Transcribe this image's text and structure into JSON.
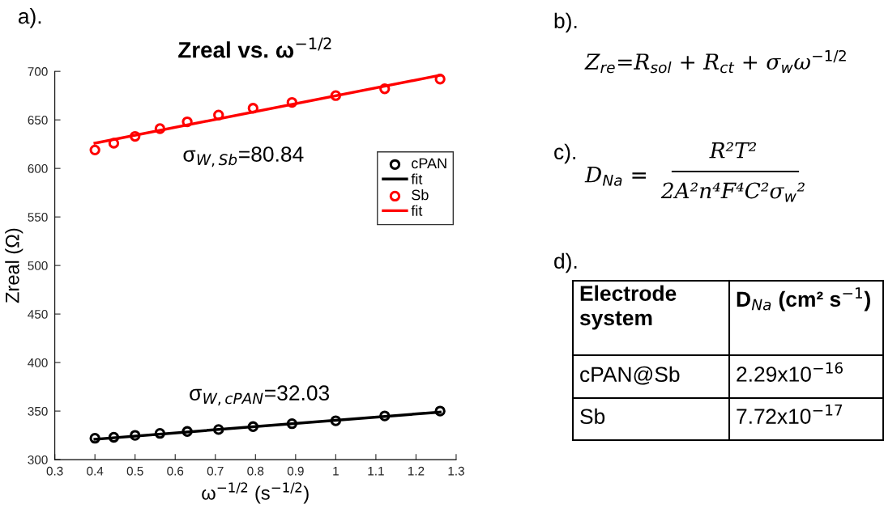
{
  "chart_data": [
    {
      "type": "scatter",
      "title": "Zreal vs. ω$^{−1/2}$",
      "xlabel": "ω$^{−1/2}$ (s$^{−1/2}$)",
      "ylabel": "Zreal (Ω)",
      "xlim": [
        0.3,
        1.3
      ],
      "xticks": [
        0.3,
        0.4,
        0.5,
        0.6,
        0.7,
        0.8,
        0.9,
        1,
        1.1,
        1.2,
        1.3
      ],
      "ylim": [
        300,
        700
      ],
      "yticks": [
        300,
        350,
        400,
        450,
        500,
        550,
        600,
        650,
        700
      ],
      "grid": false,
      "legend": "right",
      "series": [
        {
          "name": "cPAN",
          "type": "scatter",
          "marker": "circle",
          "color": "#000000",
          "x": [
            0.4,
            0.447,
            0.5,
            0.562,
            0.63,
            0.708,
            0.794,
            0.891,
            1.0,
            1.122,
            1.26
          ],
          "values": [
            322,
            323,
            325,
            327,
            329,
            331,
            334,
            337,
            340,
            345,
            350
          ]
        },
        {
          "name": "fit",
          "type": "line",
          "color": "#000000",
          "x": [
            0.4,
            1.26
          ],
          "values": [
            321,
            349
          ]
        },
        {
          "name": "Sb",
          "type": "scatter",
          "marker": "circle",
          "color": "#ff0000",
          "x": [
            0.4,
            0.447,
            0.5,
            0.562,
            0.63,
            0.708,
            0.794,
            0.891,
            1.0,
            1.122,
            1.26
          ],
          "values": [
            619,
            626,
            633,
            641,
            648,
            655,
            662,
            668,
            675,
            682,
            692
          ]
        },
        {
          "name": "fit",
          "type": "line",
          "color": "#ff0000",
          "x": [
            0.4,
            1.26
          ],
          "values": [
            626,
            696
          ]
        }
      ],
      "annotations": [
        "a).",
        "σ$_{W,Sb}$=80.84",
        "σ$_{W,cPAN}$=32.03"
      ]
    },
    {
      "type": "other",
      "annotations": [
        "b).",
        "Z$_{re}$=R$_{sol}$ + R$_{ct}$ + σ$_{w}$ω$^{−1/2}$",
        "c).",
        "D$_{Na}$ =",
        "R²T²",
        "2A²n⁴F⁴C²σ$_{w}$²",
        "d).",
        "Electrode\nsystem",
        "D$_{Na}$ (cm² s$^{−1}$)",
        "cPAN@Sb",
        "2.29x10$^{−16}$",
        "Sb",
        "7.72x10$^{−17}$"
      ]
    }
  ]
}
